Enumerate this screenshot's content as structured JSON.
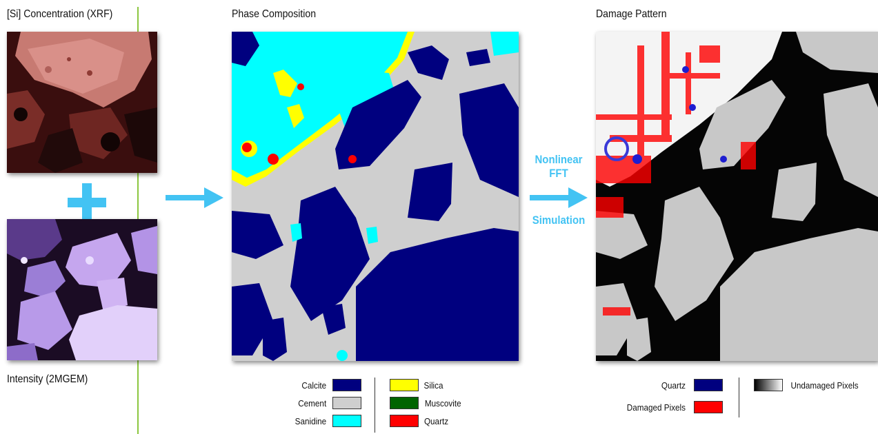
{
  "panels": {
    "xrf": {
      "title": "[Si] Concentration (XRF)"
    },
    "intensity": {
      "title": "Intensity (2MGEM)"
    },
    "phase": {
      "title": "Phase Composition"
    },
    "damage": {
      "title": "Damage Pattern"
    }
  },
  "process": {
    "line1": "Nonlinear",
    "line2": "FFT",
    "line3": "Simulation"
  },
  "icons": {
    "combine": "plus-icon",
    "flow": "arrow-right-icon"
  },
  "colors": {
    "accent": "#43c3f3",
    "divider": "#8cc63f",
    "calcite": "#00007f",
    "cement": "#cfcfcf",
    "sanidine": "#00ffff",
    "silica": "#ffff00",
    "muscovite": "#006400",
    "quartz": "#ff0000"
  },
  "phase_legend": {
    "left": [
      {
        "label": "Calcite",
        "color": "#00007f"
      },
      {
        "label": "Cement",
        "color": "#cfcfcf"
      },
      {
        "label": "Sanidine",
        "color": "#00ffff"
      }
    ],
    "right": [
      {
        "label": "Silica",
        "color": "#ffff00"
      },
      {
        "label": "Muscovite",
        "color": "#006400"
      },
      {
        "label": "Quartz",
        "color": "#ff0000"
      }
    ]
  },
  "damage_legend": {
    "quartz": {
      "label": "Quartz",
      "color": "#00007f"
    },
    "damaged": {
      "label": "Damaged Pixels",
      "color": "#ff0000"
    },
    "undamaged": {
      "label": "Undamaged Pixels"
    }
  }
}
